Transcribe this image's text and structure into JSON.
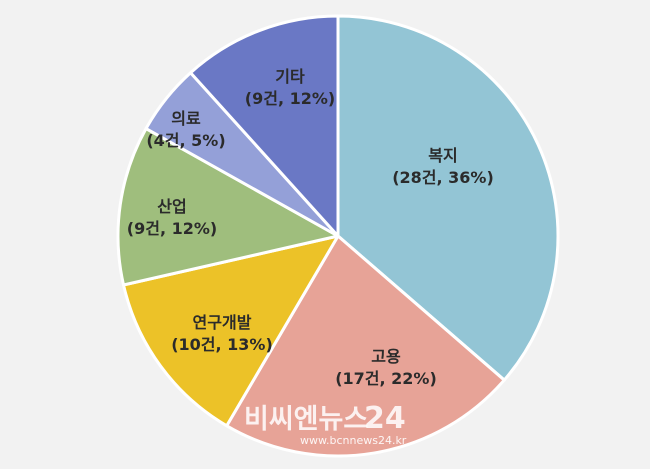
{
  "chart_data": {
    "type": "pie",
    "title": "",
    "slices": [
      {
        "name": "복지",
        "value": 28,
        "label_line1": "복지",
        "label_line2": "(28건, 36%)",
        "color": "#93c5d5"
      },
      {
        "name": "고용",
        "value": 17,
        "label_line1": "고용",
        "label_line2": "(17건, 22%)",
        "color": "#e7a397"
      },
      {
        "name": "연구개발",
        "value": 10,
        "label_line1": "연구개발",
        "label_line2": "(10건, 13%)",
        "color": "#ecc228"
      },
      {
        "name": "산업",
        "value": 9,
        "label_line1": "산업",
        "label_line2": "(9건, 12%)",
        "color": "#9fbe7d"
      },
      {
        "name": "의료",
        "value": 4,
        "label_line1": "의료",
        "label_line2": "(4건, 5%)",
        "color": "#94a0d8"
      },
      {
        "name": "기타",
        "value": 9,
        "label_line1": "기타",
        "label_line2": "(9건, 12%)",
        "color": "#6a78c5"
      }
    ],
    "start_angle": "top",
    "direction": "clockwise"
  },
  "watermark": {
    "brand_text": "비씨엔뉴스",
    "brand_number": "24",
    "url": "www.bcnnews24.kr"
  }
}
